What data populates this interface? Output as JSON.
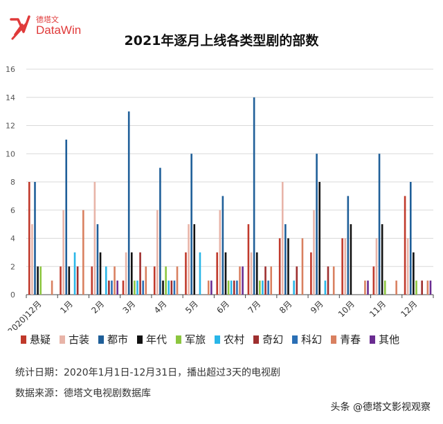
{
  "header": {
    "logo_cn": "德塔文",
    "logo_text": "DataWin",
    "title": "2021年逐月上线各类型剧的部数"
  },
  "chart_data": {
    "type": "bar",
    "title": "2021年逐月上线各类型剧的部数",
    "categories": [
      "(2020)12月",
      "1月",
      "2月",
      "3月",
      "4月",
      "5月",
      "6月",
      "7月",
      "8月",
      "9月",
      "10月",
      "11月",
      "12月"
    ],
    "ylim": [
      0,
      16
    ],
    "yticks": [
      0,
      2,
      4,
      6,
      8,
      10,
      12,
      14,
      16
    ],
    "grid": true,
    "legend_position": "bottom",
    "series": [
      {
        "name": "悬疑",
        "color": "#c0392b",
        "values": [
          8,
          2,
          2,
          1,
          2,
          3,
          3,
          5,
          4,
          3,
          4,
          2,
          7
        ]
      },
      {
        "name": "古装",
        "color": "#e8b4a8",
        "values": [
          5,
          6,
          8,
          3,
          6,
          5,
          6,
          3,
          8,
          6,
          4,
          4,
          4
        ]
      },
      {
        "name": "都市",
        "color": "#1f5f99",
        "values": [
          8,
          11,
          5,
          13,
          9,
          10,
          7,
          14,
          5,
          10,
          7,
          10,
          8
        ]
      },
      {
        "name": "年代",
        "color": "#111111",
        "values": [
          2,
          2,
          3,
          3,
          1,
          5,
          3,
          3,
          4,
          8,
          5,
          5,
          3
        ]
      },
      {
        "name": "军旅",
        "color": "#8cc63f",
        "values": [
          2,
          0,
          0,
          1,
          2,
          0,
          1,
          1,
          0,
          0,
          0,
          1,
          1
        ]
      },
      {
        "name": "农村",
        "color": "#29b6e8",
        "values": [
          0,
          3,
          2,
          1,
          1,
          3,
          1,
          1,
          1,
          1,
          0,
          0,
          0
        ]
      },
      {
        "name": "奇幻",
        "color": "#9e2f2f",
        "values": [
          0,
          2,
          1,
          3,
          1,
          0,
          1,
          2,
          2,
          2,
          0,
          0,
          1
        ]
      },
      {
        "name": "科幻",
        "color": "#2a6fb5",
        "values": [
          0,
          0,
          1,
          1,
          1,
          0,
          1,
          1,
          0,
          0,
          0,
          0,
          0
        ]
      },
      {
        "name": "青春",
        "color": "#d98060",
        "values": [
          1,
          6,
          2,
          2,
          2,
          1,
          2,
          2,
          4,
          2,
          1,
          1,
          1
        ]
      },
      {
        "name": "其他",
        "color": "#6a2c91",
        "values": [
          0,
          0,
          1,
          0,
          0,
          1,
          2,
          0,
          0,
          0,
          1,
          0,
          1
        ]
      }
    ]
  },
  "notes": {
    "date_note": "统计日期：2020年1月1日-12月31日，播出超过3天的电视剧",
    "source_note": "数据来源：德塔文电视剧数据库"
  },
  "watermark": {
    "text": "头条 @德塔文影视观察"
  }
}
